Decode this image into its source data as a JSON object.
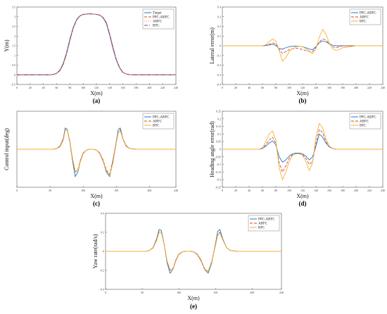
{
  "chart_data": [
    {
      "id": "a",
      "type": "line",
      "panel_label": "(a)",
      "xlabel": "X(m)",
      "ylabel": "Y(m)",
      "xlim": [
        0,
        240
      ],
      "ylim": [
        -0.5,
        3.5
      ],
      "xticks": [
        "0",
        "20",
        "40",
        "60",
        "80",
        "100",
        "120",
        "140",
        "160",
        "180",
        "200",
        "220",
        "240"
      ],
      "yticks": [
        "-0.5",
        "0",
        "0.5",
        "1",
        "1.5",
        "2",
        "2.5",
        "3",
        "3.5"
      ],
      "legend": {
        "position": "top-right"
      },
      "x": [
        0,
        50,
        55,
        60,
        65,
        70,
        75,
        80,
        85,
        90,
        95,
        100,
        105,
        110,
        115,
        120,
        125,
        130,
        135,
        140,
        145,
        150,
        155,
        160,
        165,
        170,
        175,
        180,
        240
      ],
      "series": [
        {
          "name": "Target",
          "color": "#1f77c8",
          "dash": "solid",
          "values": [
            0,
            0,
            0.02,
            0.08,
            0.25,
            0.6,
            1.15,
            1.85,
            2.45,
            2.85,
            3.05,
            3.12,
            3.14,
            3.15,
            3.14,
            3.12,
            3.08,
            2.95,
            2.65,
            2.05,
            1.35,
            0.75,
            0.35,
            0.12,
            0.04,
            0.01,
            0,
            0,
            0
          ]
        },
        {
          "name": "PPC-ABFC",
          "color": "#d6452c",
          "dash": "dashed",
          "values": [
            0,
            0,
            0.02,
            0.07,
            0.22,
            0.55,
            1.08,
            1.78,
            2.4,
            2.82,
            3.03,
            3.11,
            3.14,
            3.15,
            3.14,
            3.12,
            3.09,
            2.97,
            2.7,
            2.12,
            1.42,
            0.8,
            0.38,
            0.13,
            0.04,
            0.01,
            0,
            0,
            0
          ]
        },
        {
          "name": "ABFC",
          "color": "#f2b134",
          "dash": "dotted",
          "values": [
            0,
            0,
            0.02,
            0.06,
            0.2,
            0.5,
            1.02,
            1.72,
            2.35,
            2.8,
            3.02,
            3.11,
            3.14,
            3.15,
            3.14,
            3.13,
            3.1,
            2.99,
            2.74,
            2.18,
            1.48,
            0.85,
            0.41,
            0.15,
            0.05,
            0.01,
            0,
            0,
            0
          ]
        },
        {
          "name": "BFC",
          "color": "#8a3aa3",
          "dash": "dashdot",
          "values": [
            0,
            0,
            0.02,
            0.07,
            0.23,
            0.57,
            1.1,
            1.8,
            2.42,
            2.83,
            3.04,
            3.12,
            3.14,
            3.15,
            3.14,
            3.12,
            3.08,
            2.96,
            2.68,
            2.1,
            1.4,
            0.78,
            0.37,
            0.12,
            0.04,
            0.01,
            0,
            0,
            0
          ]
        }
      ]
    },
    {
      "id": "b",
      "type": "line",
      "panel_label": "(b)",
      "xlabel": "X(m)",
      "ylabel": "Lateral error(m)",
      "xlim": [
        0,
        240
      ],
      "ylim": [
        -0.4,
        0.4
      ],
      "xticks": [
        "0",
        "20",
        "40",
        "60",
        "80",
        "100",
        "120",
        "140",
        "160",
        "180",
        "200",
        "220",
        "240"
      ],
      "yticks": [
        "-0.4",
        "-0.3",
        "-0.2",
        "-0.1",
        "0",
        "0.1",
        "0.2",
        "0.3",
        "0.4"
      ],
      "legend": {
        "position": "top-right"
      },
      "x": [
        0,
        60,
        65,
        70,
        75,
        80,
        85,
        90,
        95,
        100,
        105,
        110,
        115,
        120,
        125,
        130,
        135,
        140,
        145,
        150,
        155,
        160,
        165,
        170,
        175,
        180,
        190,
        200,
        210,
        240
      ],
      "series": [
        {
          "name": "PPC-ABFC",
          "color": "#1f77c8",
          "dash": "solid",
          "values": [
            0,
            0,
            0.002,
            0.008,
            0.015,
            0.005,
            -0.03,
            -0.035,
            -0.02,
            -0.01,
            -0.005,
            -0.003,
            -0.005,
            -0.01,
            -0.02,
            -0.035,
            -0.04,
            -0.01,
            0.03,
            0.05,
            0.04,
            0.02,
            0.005,
            0,
            0,
            0,
            0,
            0,
            0,
            0
          ]
        },
        {
          "name": "ABFC",
          "color": "#d6452c",
          "dash": "dashed",
          "values": [
            0,
            0,
            0.005,
            0.015,
            0.03,
            0.02,
            -0.04,
            -0.08,
            -0.06,
            -0.04,
            -0.03,
            -0.025,
            -0.03,
            -0.04,
            -0.05,
            -0.06,
            -0.06,
            -0.02,
            0.04,
            0.07,
            0.06,
            0.02,
            -0.01,
            -0.02,
            -0.01,
            0,
            0,
            0,
            0,
            0
          ]
        },
        {
          "name": "BFC",
          "color": "#f2b134",
          "dash": "solid",
          "values": [
            0,
            0,
            0.01,
            0.04,
            0.07,
            0.05,
            -0.05,
            -0.16,
            -0.12,
            -0.06,
            -0.03,
            -0.01,
            -0.005,
            -0.01,
            -0.03,
            -0.06,
            -0.08,
            -0.03,
            0.09,
            0.17,
            0.12,
            0.03,
            -0.03,
            -0.05,
            -0.04,
            -0.02,
            -0.01,
            0,
            0,
            0
          ]
        }
      ]
    },
    {
      "id": "c",
      "type": "line",
      "panel_label": "(c)",
      "xlabel": "X(m)",
      "ylabel": "Control input(deg)",
      "xlim": [
        0,
        240
      ],
      "ylim": [
        -50,
        50
      ],
      "xticks": [
        "0",
        "50",
        "100",
        "150",
        "200",
        "240"
      ],
      "yticks": [],
      "legend": {
        "position": "top-right"
      },
      "x": [
        0,
        55,
        60,
        65,
        70,
        73,
        76,
        80,
        84,
        88,
        92,
        96,
        100,
        105,
        110,
        115,
        120,
        125,
        130,
        135,
        140,
        145,
        150,
        153,
        156,
        160,
        165,
        170,
        180,
        240
      ],
      "series": [
        {
          "name": "PPC-ABFC",
          "color": "#1f77c8",
          "dash": "solid",
          "values": [
            0,
            0,
            1,
            4,
            14,
            28,
            26,
            10,
            -15,
            -36,
            -30,
            -15,
            -5,
            -1,
            0,
            0,
            -1,
            -5,
            -15,
            -30,
            -36,
            -15,
            10,
            26,
            28,
            14,
            4,
            1,
            0,
            0
          ]
        },
        {
          "name": "ABFC",
          "color": "#d6452c",
          "dash": "dashed",
          "values": [
            0,
            0,
            1,
            4,
            13,
            26,
            25,
            9,
            -14,
            -30,
            -27,
            -14,
            -5,
            -1,
            0,
            0,
            -1,
            -5,
            -14,
            -27,
            -33,
            -14,
            9,
            22,
            26,
            13,
            4,
            1,
            0,
            0
          ]
        },
        {
          "name": "BFC",
          "color": "#f2b134",
          "dash": "solid",
          "values": [
            0,
            0,
            1,
            3,
            12,
            25,
            25,
            11,
            -12,
            -28,
            -28,
            -16,
            -6,
            -1,
            0,
            0,
            -1,
            -6,
            -16,
            -28,
            -34,
            -18,
            8,
            22,
            24,
            14,
            5,
            1,
            0,
            0
          ]
        }
      ]
    },
    {
      "id": "d",
      "type": "line",
      "panel_label": "(d)",
      "xlabel": "X(m)",
      "ylabel": "Heading angle error(rad)",
      "xlim": [
        0,
        240
      ],
      "ylim": [
        -0.25,
        0.25
      ],
      "xticks": [
        "0",
        "20",
        "40",
        "60",
        "80",
        "100",
        "120",
        "140",
        "160",
        "180",
        "200",
        "220",
        "240"
      ],
      "yticks": [
        "-0.25",
        "-0.2",
        "-0.15",
        "-0.1",
        "-0.05",
        "0",
        "0.05",
        "0.1",
        "0.15",
        "0.2",
        "0.25"
      ],
      "legend": {
        "position": "top-right"
      },
      "x": [
        0,
        55,
        60,
        65,
        70,
        75,
        80,
        85,
        90,
        95,
        100,
        105,
        110,
        115,
        120,
        125,
        130,
        135,
        140,
        145,
        150,
        155,
        160,
        165,
        170,
        175,
        180,
        190,
        200,
        240
      ],
      "series": [
        {
          "name": "PPC-ABFC",
          "color": "#1f77c8",
          "dash": "solid",
          "values": [
            0,
            0,
            0.005,
            0.02,
            0.04,
            0.055,
            0.03,
            -0.05,
            -0.085,
            -0.07,
            -0.045,
            -0.03,
            -0.025,
            -0.025,
            -0.03,
            -0.045,
            -0.07,
            -0.05,
            0.02,
            0.1,
            0.08,
            0.04,
            0.015,
            0.005,
            0,
            0,
            0,
            0,
            0,
            0
          ]
        },
        {
          "name": "ABFC",
          "color": "#d6452c",
          "dash": "dashed",
          "values": [
            0,
            0,
            0.008,
            0.03,
            0.06,
            0.08,
            0.04,
            -0.09,
            -0.15,
            -0.11,
            -0.06,
            -0.035,
            -0.03,
            -0.03,
            -0.035,
            -0.06,
            -0.1,
            -0.08,
            0.04,
            0.13,
            0.11,
            0.05,
            0.02,
            0.005,
            0,
            0,
            0,
            0,
            0,
            0
          ]
        },
        {
          "name": "BFC",
          "color": "#f2b134",
          "dash": "solid",
          "values": [
            0,
            0,
            0.01,
            0.05,
            0.1,
            0.12,
            0.06,
            -0.12,
            -0.2,
            -0.15,
            -0.08,
            -0.04,
            -0.03,
            -0.03,
            -0.04,
            -0.08,
            -0.14,
            -0.09,
            0.08,
            0.17,
            0.14,
            0.07,
            0.02,
            0.005,
            0,
            0,
            0,
            0,
            0,
            0
          ]
        }
      ]
    },
    {
      "id": "e",
      "type": "line",
      "panel_label": "(e)",
      "xlabel": "X(m)",
      "ylabel": "Yaw rate(rad/s)",
      "xlim": [
        0,
        240
      ],
      "ylim": [
        -0.4,
        0.4
      ],
      "xticks": [
        "0",
        "50",
        "100",
        "150",
        "200",
        "240"
      ],
      "yticks": [
        "-0.4",
        "-0.2",
        "0",
        "0.2",
        "0.4"
      ],
      "legend": {
        "position": "top-right"
      },
      "x": [
        0,
        55,
        60,
        65,
        70,
        73,
        76,
        80,
        84,
        88,
        92,
        96,
        100,
        105,
        110,
        115,
        120,
        125,
        130,
        135,
        140,
        145,
        150,
        153,
        156,
        160,
        165,
        170,
        180,
        240
      ],
      "series": [
        {
          "name": "PPC-ABFC",
          "color": "#1f77c8",
          "dash": "solid",
          "values": [
            0,
            0,
            0.01,
            0.04,
            0.14,
            0.23,
            0.22,
            0.08,
            -0.12,
            -0.23,
            -0.19,
            -0.09,
            -0.03,
            -0.005,
            0,
            0,
            -0.005,
            -0.03,
            -0.09,
            -0.19,
            -0.23,
            -0.12,
            0.08,
            0.21,
            0.23,
            0.13,
            0.04,
            0.01,
            0,
            0
          ]
        },
        {
          "name": "ABFC",
          "color": "#d6452c",
          "dash": "dashed",
          "values": [
            0,
            0,
            0.01,
            0.04,
            0.13,
            0.21,
            0.2,
            0.07,
            -0.11,
            -0.2,
            -0.18,
            -0.09,
            -0.03,
            -0.005,
            0,
            0,
            -0.005,
            -0.03,
            -0.09,
            -0.18,
            -0.21,
            -0.1,
            0.07,
            0.18,
            0.2,
            0.12,
            0.04,
            0.01,
            0,
            0
          ]
        },
        {
          "name": "BFC",
          "color": "#f2b134",
          "dash": "solid",
          "values": [
            0,
            0,
            0.01,
            0.035,
            0.12,
            0.2,
            0.2,
            0.08,
            -0.1,
            -0.19,
            -0.19,
            -0.1,
            -0.035,
            -0.006,
            0,
            0,
            -0.006,
            -0.035,
            -0.1,
            -0.19,
            -0.21,
            -0.11,
            0.06,
            0.17,
            0.19,
            0.12,
            0.04,
            0.01,
            0,
            0
          ]
        }
      ]
    }
  ]
}
